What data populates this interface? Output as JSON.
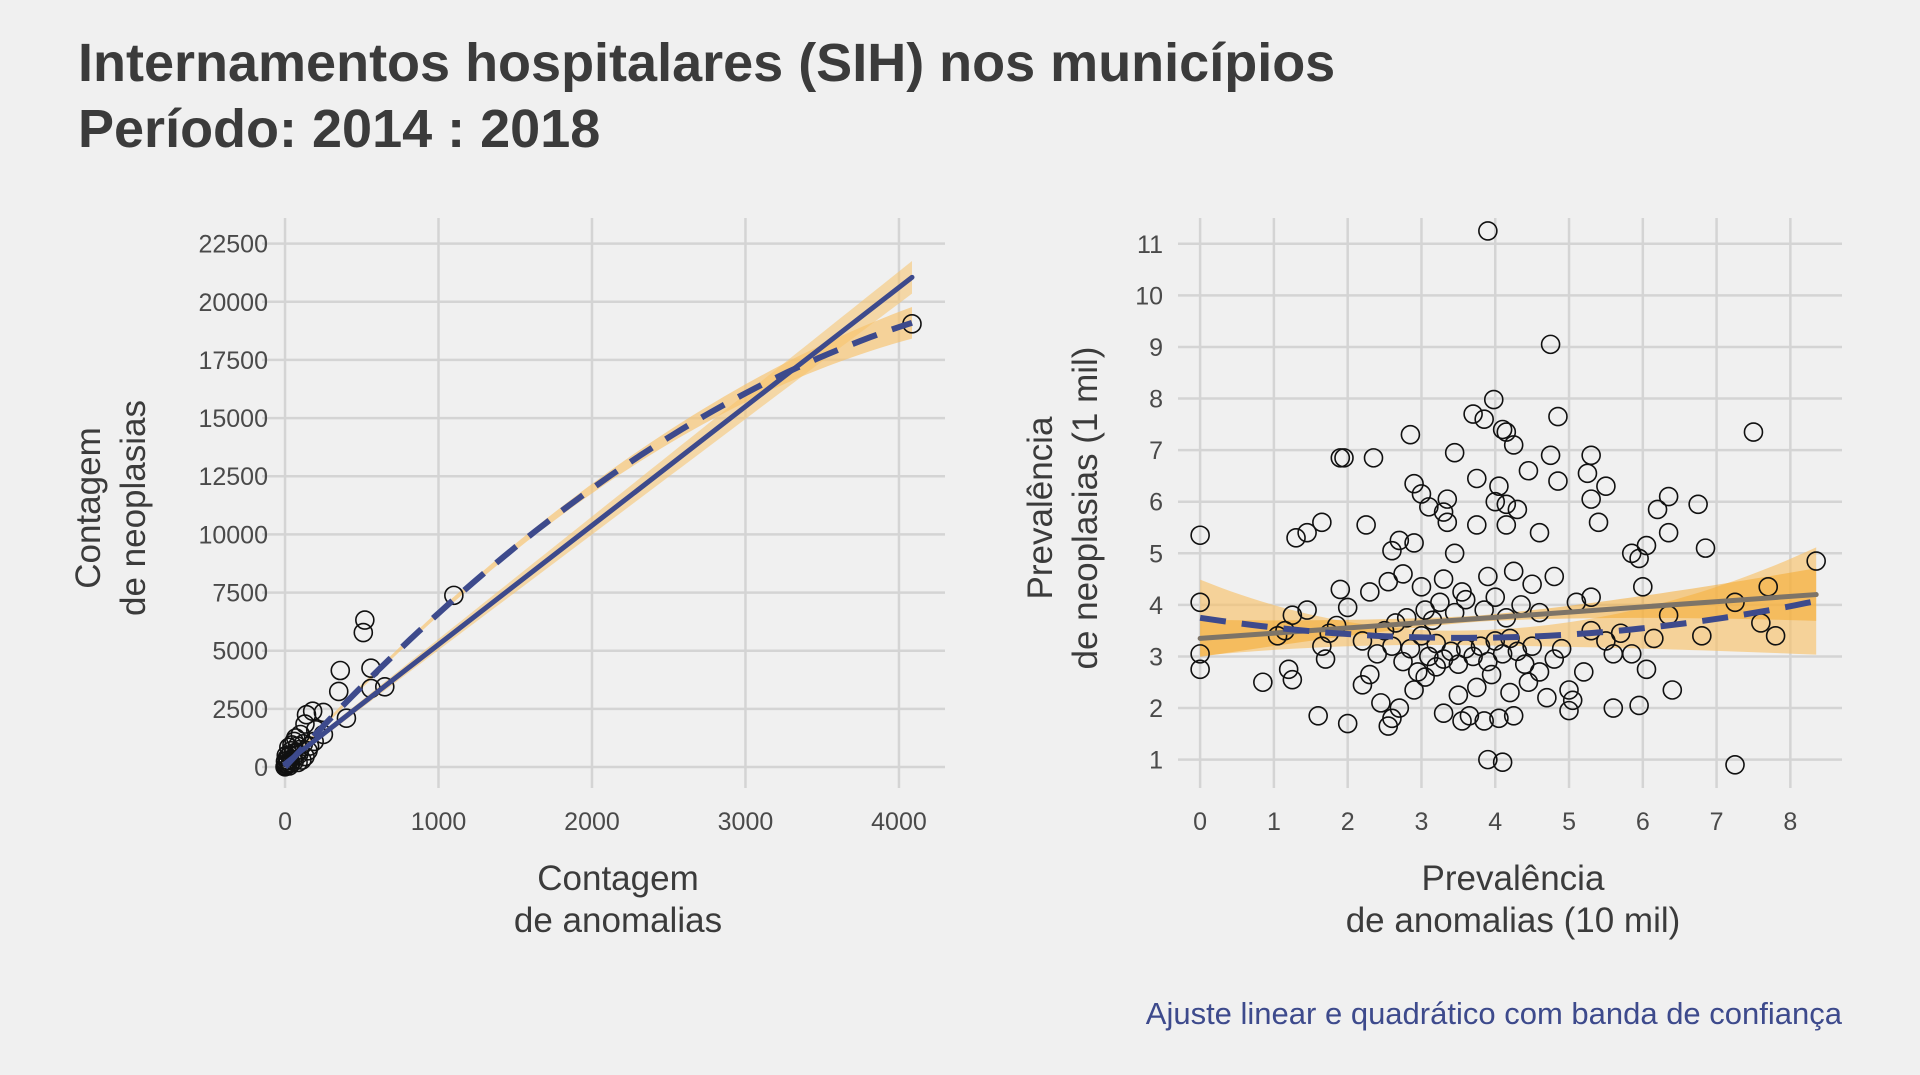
{
  "title": {
    "line1": "Internamentos hospitalares (SIH) nos municípios",
    "line2": "Período: 2014 : 2018"
  },
  "caption": "Ajuste linear e quadrático com banda de confiança",
  "colors": {
    "background": "#f0f0f0",
    "grid": "#d4d4d4",
    "navy": "#3d4a8c",
    "band": "#f8c26a",
    "gray_line": "#7d7468",
    "points": "#111111"
  },
  "chart_data": [
    {
      "type": "scatter",
      "xlabel": [
        "Contagem",
        "de anomalias"
      ],
      "ylabel": [
        "Contagem",
        "de neoplasias"
      ],
      "xlim": [
        -150,
        4300
      ],
      "ylim": [
        -900,
        23600
      ],
      "xticks": [
        0,
        1000,
        2000,
        3000,
        4000
      ],
      "yticks": [
        0,
        2500,
        5000,
        7500,
        10000,
        12500,
        15000,
        17500,
        20000,
        22500
      ],
      "grid": true,
      "points": [
        [
          4085,
          19050
        ],
        [
          1100,
          7380
        ],
        [
          520,
          6320
        ],
        [
          510,
          5780
        ],
        [
          650,
          3450
        ],
        [
          560,
          3380
        ],
        [
          360,
          4150
        ],
        [
          560,
          4250
        ],
        [
          350,
          3250
        ],
        [
          400,
          2100
        ],
        [
          250,
          2350
        ],
        [
          180,
          2400
        ],
        [
          140,
          2250
        ],
        [
          130,
          1850
        ],
        [
          250,
          1400
        ],
        [
          190,
          1100
        ],
        [
          100,
          1400
        ],
        [
          120,
          1000
        ],
        [
          80,
          900
        ],
        [
          60,
          1100
        ],
        [
          90,
          550
        ],
        [
          150,
          700
        ],
        [
          110,
          300
        ],
        [
          200,
          1600
        ],
        [
          70,
          1250
        ],
        [
          40,
          700
        ],
        [
          30,
          500
        ],
        [
          50,
          300
        ],
        [
          20,
          200
        ],
        [
          10,
          100
        ],
        [
          5,
          50
        ],
        [
          0,
          10
        ],
        [
          15,
          400
        ],
        [
          35,
          150
        ],
        [
          60,
          250
        ],
        [
          75,
          600
        ],
        [
          25,
          850
        ],
        [
          45,
          950
        ],
        [
          95,
          750
        ],
        [
          130,
          450
        ],
        [
          160,
          900
        ],
        [
          85,
          200
        ],
        [
          55,
          600
        ],
        [
          18,
          300
        ],
        [
          8,
          500
        ],
        [
          12,
          150
        ],
        [
          3,
          250
        ],
        [
          28,
          50
        ]
      ],
      "linear_fit": {
        "x": [
          0,
          4085
        ],
        "y": [
          150,
          21050
        ],
        "ci_halfwidth": [
          120,
          700
        ]
      },
      "quadratic_fit": {
        "a": -0.000628,
        "b": 7.24,
        "c": 0,
        "x_range": [
          0,
          4085
        ],
        "ci_at_max": 600
      }
    },
    {
      "type": "scatter",
      "xlabel": [
        "Prevalência",
        "de anomalias (10 mil)"
      ],
      "ylabel": [
        "Prevalência",
        "de neoplasias (1 mil)"
      ],
      "xlim": [
        -0.3,
        8.7
      ],
      "ylim": [
        0.45,
        11.5
      ],
      "xticks": [
        0,
        1,
        2,
        3,
        4,
        5,
        6,
        7,
        8
      ],
      "yticks": [
        1,
        2,
        3,
        4,
        5,
        6,
        7,
        8,
        9,
        10,
        11
      ],
      "grid": true,
      "points": [
        [
          3.9,
          11.25
        ],
        [
          4.75,
          9.05
        ],
        [
          3.98,
          7.98
        ],
        [
          4.1,
          7.4
        ],
        [
          4.15,
          7.35
        ],
        [
          3.7,
          7.7
        ],
        [
          4.85,
          7.65
        ],
        [
          7.5,
          7.35
        ],
        [
          2.85,
          7.3
        ],
        [
          3.85,
          7.6
        ],
        [
          1.9,
          6.85
        ],
        [
          1.95,
          6.85
        ],
        [
          2.35,
          6.85
        ],
        [
          3.45,
          6.95
        ],
        [
          4.25,
          7.1
        ],
        [
          5.3,
          6.9
        ],
        [
          4.75,
          6.9
        ],
        [
          4.45,
          6.6
        ],
        [
          5.25,
          6.55
        ],
        [
          4.85,
          6.4
        ],
        [
          2.9,
          6.35
        ],
        [
          3.75,
          6.45
        ],
        [
          4.05,
          6.3
        ],
        [
          6.35,
          6.1
        ],
        [
          6.75,
          5.95
        ],
        [
          3.0,
          6.15
        ],
        [
          4.0,
          6.0
        ],
        [
          3.1,
          5.9
        ],
        [
          3.35,
          6.05
        ],
        [
          3.3,
          5.8
        ],
        [
          4.15,
          5.95
        ],
        [
          5.5,
          6.3
        ],
        [
          4.3,
          5.85
        ],
        [
          5.3,
          6.05
        ],
        [
          6.2,
          5.85
        ],
        [
          0.0,
          5.35
        ],
        [
          1.3,
          5.3
        ],
        [
          1.45,
          5.4
        ],
        [
          1.65,
          5.6
        ],
        [
          2.25,
          5.55
        ],
        [
          3.35,
          5.6
        ],
        [
          3.75,
          5.55
        ],
        [
          4.15,
          5.55
        ],
        [
          4.6,
          5.4
        ],
        [
          5.4,
          5.6
        ],
        [
          6.35,
          5.4
        ],
        [
          6.05,
          5.15
        ],
        [
          6.85,
          5.1
        ],
        [
          5.85,
          5.0
        ],
        [
          5.95,
          4.9
        ],
        [
          2.9,
          5.2
        ],
        [
          3.45,
          5.0
        ],
        [
          2.7,
          5.25
        ],
        [
          2.6,
          5.05
        ],
        [
          8.35,
          4.85
        ],
        [
          7.7,
          4.35
        ],
        [
          7.25,
          4.05
        ],
        [
          7.6,
          3.65
        ],
        [
          7.8,
          3.4
        ],
        [
          6.8,
          3.4
        ],
        [
          6.35,
          3.8
        ],
        [
          6.0,
          4.35
        ],
        [
          6.15,
          3.35
        ],
        [
          6.05,
          2.75
        ],
        [
          6.4,
          2.35
        ],
        [
          5.85,
          3.05
        ],
        [
          5.6,
          2.0
        ],
        [
          5.95,
          2.05
        ],
        [
          5.0,
          2.35
        ],
        [
          5.05,
          2.15
        ],
        [
          5.0,
          1.95
        ],
        [
          5.2,
          2.7
        ],
        [
          5.3,
          3.5
        ],
        [
          5.1,
          4.05
        ],
        [
          5.3,
          4.15
        ],
        [
          4.8,
          4.55
        ],
        [
          0.0,
          4.05
        ],
        [
          0.0,
          3.05
        ],
        [
          0.0,
          2.75
        ],
        [
          0.85,
          2.5
        ],
        [
          1.25,
          2.55
        ],
        [
          1.2,
          2.75
        ],
        [
          1.6,
          1.85
        ],
        [
          2.0,
          1.7
        ],
        [
          2.55,
          1.65
        ],
        [
          2.6,
          1.8
        ],
        [
          3.3,
          1.9
        ],
        [
          3.55,
          1.75
        ],
        [
          3.65,
          1.85
        ],
        [
          3.85,
          1.75
        ],
        [
          4.05,
          1.8
        ],
        [
          4.25,
          1.85
        ],
        [
          3.9,
          1.0
        ],
        [
          4.1,
          0.95
        ],
        [
          7.25,
          0.9
        ],
        [
          1.05,
          3.4
        ],
        [
          1.15,
          3.5
        ],
        [
          1.25,
          3.8
        ],
        [
          1.45,
          3.9
        ],
        [
          1.65,
          3.2
        ],
        [
          1.7,
          2.95
        ],
        [
          1.85,
          3.6
        ],
        [
          2.2,
          2.45
        ],
        [
          2.3,
          2.65
        ],
        [
          2.45,
          2.1
        ],
        [
          2.7,
          2.0
        ],
        [
          2.9,
          2.35
        ],
        [
          3.05,
          2.6
        ],
        [
          3.2,
          2.8
        ],
        [
          3.5,
          2.25
        ],
        [
          3.75,
          2.4
        ],
        [
          3.95,
          2.65
        ],
        [
          4.2,
          2.3
        ],
        [
          4.45,
          2.5
        ],
        [
          4.6,
          2.7
        ],
        [
          4.8,
          2.95
        ],
        [
          2.2,
          3.3
        ],
        [
          2.4,
          3.05
        ],
        [
          2.5,
          3.5
        ],
        [
          2.6,
          3.2
        ],
        [
          2.75,
          2.9
        ],
        [
          2.85,
          3.15
        ],
        [
          2.95,
          2.7
        ],
        [
          3.0,
          3.4
        ],
        [
          3.1,
          3.0
        ],
        [
          3.2,
          3.25
        ],
        [
          3.3,
          2.95
        ],
        [
          3.4,
          3.1
        ],
        [
          3.5,
          2.85
        ],
        [
          3.6,
          3.15
        ],
        [
          3.7,
          3.0
        ],
        [
          3.8,
          3.2
        ],
        [
          3.9,
          2.9
        ],
        [
          4.0,
          3.3
        ],
        [
          4.1,
          3.05
        ],
        [
          4.2,
          3.35
        ],
        [
          4.3,
          3.1
        ],
        [
          4.4,
          2.85
        ],
        [
          4.5,
          3.2
        ],
        [
          2.65,
          3.65
        ],
        [
          2.8,
          3.75
        ],
        [
          3.05,
          3.9
        ],
        [
          3.15,
          3.7
        ],
        [
          3.25,
          4.05
        ],
        [
          3.45,
          3.85
        ],
        [
          3.6,
          4.1
        ],
        [
          3.85,
          3.9
        ],
        [
          4.0,
          4.15
        ],
        [
          4.15,
          3.75
        ],
        [
          4.35,
          4.0
        ],
        [
          4.6,
          3.85
        ],
        [
          2.3,
          4.25
        ],
        [
          2.55,
          4.45
        ],
        [
          2.75,
          4.6
        ],
        [
          3.0,
          4.35
        ],
        [
          3.3,
          4.5
        ],
        [
          3.55,
          4.25
        ],
        [
          3.9,
          4.55
        ],
        [
          4.25,
          4.65
        ],
        [
          4.5,
          4.4
        ],
        [
          2.0,
          3.95
        ],
        [
          1.9,
          4.3
        ],
        [
          1.75,
          3.45
        ],
        [
          5.5,
          3.3
        ],
        [
          5.6,
          3.05
        ],
        [
          5.7,
          3.45
        ],
        [
          4.9,
          3.15
        ],
        [
          4.7,
          2.2
        ]
      ],
      "linear_fit": {
        "x": [
          0,
          8.35
        ],
        "y": [
          3.35,
          4.2
        ],
        "ci_at_min": 0.3,
        "ci_at_max": 0.45
      },
      "quadratic_fit": {
        "a": 0.031,
        "b": -0.22,
        "c": 3.75,
        "x_range": [
          0,
          8.35
        ],
        "ci_at_max": 0.9
      }
    }
  ]
}
